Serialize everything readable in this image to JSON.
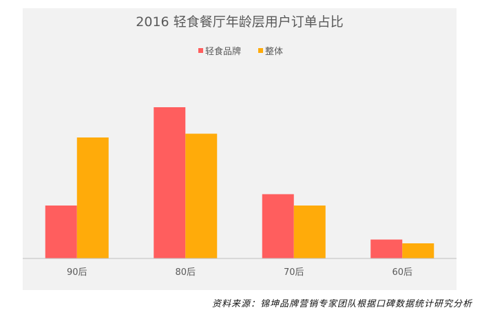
{
  "chart_data": {
    "type": "bar",
    "title": "2016 轻食餐厅年龄层用户订单占比",
    "categories": [
      "90后",
      "80后",
      "70后",
      "60后"
    ],
    "series": [
      {
        "name": "轻食品牌",
        "values": [
          14,
          40,
          17,
          5
        ],
        "color": "#ff5e5e"
      },
      {
        "name": "整体",
        "values": [
          32,
          33,
          14,
          4
        ],
        "color": "#ffab0a"
      }
    ],
    "ylim": [
      0,
      45
    ],
    "xlabel": "",
    "ylabel": "",
    "grid": false,
    "legend_position": "top-center"
  },
  "source": "资料来源：锦坤品牌营销专家团队根据口碑数据统计研究分析"
}
